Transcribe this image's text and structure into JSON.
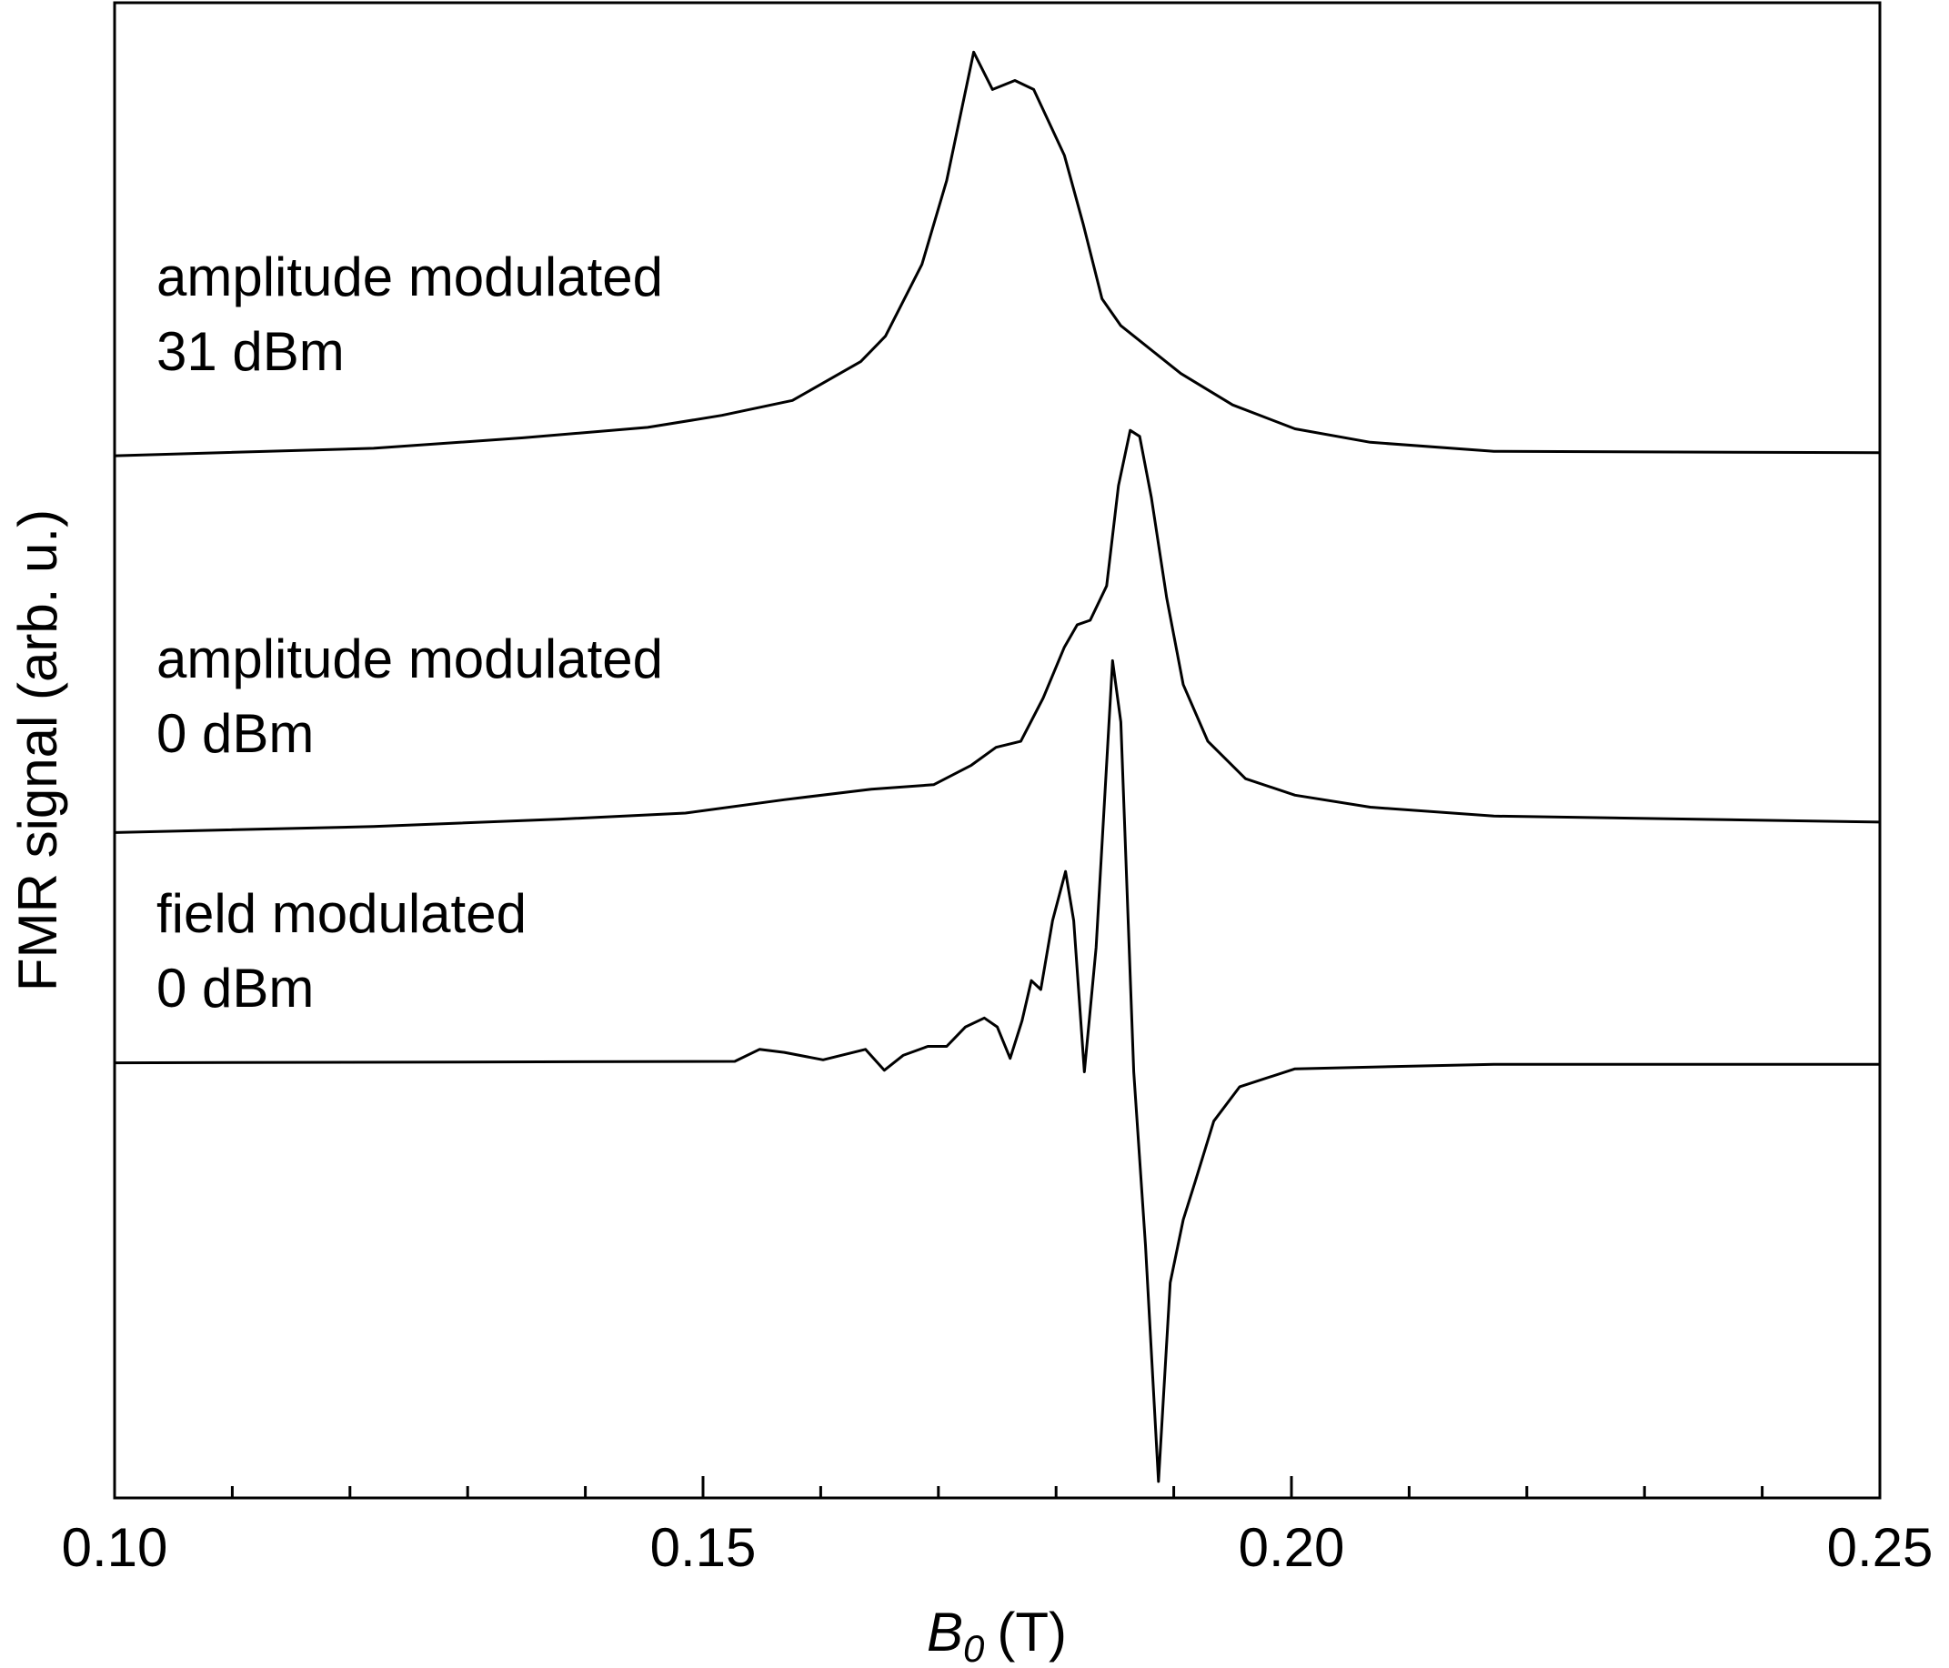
{
  "chart_data": {
    "type": "line",
    "ylabel": "FMR signal (arb. u.)",
    "xlabel": {
      "symbol": "B",
      "subscript": "0",
      "unit": "(T)"
    },
    "xlim": [
      0.1,
      0.25
    ],
    "xticks": [
      {
        "value": 0.1,
        "label": "0.10"
      },
      {
        "value": 0.15,
        "label": "0.15"
      },
      {
        "value": 0.2,
        "label": "0.20"
      },
      {
        "value": 0.25,
        "label": "0.25"
      }
    ],
    "xminorticks": [
      0.11,
      0.12,
      0.13,
      0.14,
      0.16,
      0.17,
      0.18,
      0.19,
      0.21,
      0.22,
      0.23,
      0.24
    ],
    "ylim": [
      0,
      100
    ],
    "annotations": [
      {
        "lines": [
          "amplitude modulated",
          "31 dBm"
        ]
      },
      {
        "lines": [
          "amplitude modulated",
          "0 dBm"
        ]
      },
      {
        "lines": [
          "field modulated",
          "0 dBm"
        ]
      }
    ],
    "series": [
      {
        "color": "#000000",
        "x": [
          0.1,
          0.122,
          0.1347,
          0.1453,
          0.1516,
          0.1576,
          0.1634,
          0.1655,
          0.1686,
          0.1707,
          0.173,
          0.1746,
          0.1765,
          0.1781,
          0.1807,
          0.1823,
          0.1839,
          0.1855,
          0.1906,
          0.195,
          0.2003,
          0.2067,
          0.2172,
          0.25
        ],
        "values": [
          69.7,
          70.2,
          70.9,
          71.6,
          72.4,
          73.4,
          76.0,
          77.7,
          82.5,
          88.1,
          96.7,
          94.2,
          94.8,
          94.2,
          89.8,
          85.2,
          80.2,
          78.4,
          75.2,
          73.1,
          71.5,
          70.6,
          70.0,
          69.9
        ]
      },
      {
        "color": "#000000",
        "x": [
          0.1,
          0.122,
          0.1379,
          0.1485,
          0.1569,
          0.1643,
          0.1696,
          0.1728,
          0.1749,
          0.177,
          0.1789,
          0.1807,
          0.1818,
          0.1829,
          0.1843,
          0.1853,
          0.1863,
          0.1871,
          0.1881,
          0.1894,
          0.1908,
          0.1929,
          0.1961,
          0.2003,
          0.2067,
          0.2172,
          0.25
        ],
        "values": [
          44.5,
          44.9,
          45.4,
          45.8,
          46.7,
          47.4,
          47.7,
          49.0,
          50.2,
          50.6,
          53.5,
          56.9,
          58.4,
          58.7,
          61.0,
          67.7,
          71.4,
          71.0,
          66.9,
          60.2,
          54.4,
          50.6,
          48.1,
          47.0,
          46.2,
          45.6,
          45.2
        ]
      },
      {
        "color": "#000000",
        "x": [
          0.1,
          0.1527,
          0.1548,
          0.1569,
          0.1602,
          0.1638,
          0.1654,
          0.167,
          0.1691,
          0.1707,
          0.1723,
          0.1739,
          0.175,
          0.1761,
          0.1771,
          0.1779,
          0.1787,
          0.1797,
          0.1808,
          0.1815,
          0.1824,
          0.1834,
          0.1848,
          0.1855,
          0.1866,
          0.1876,
          0.1887,
          0.1897,
          0.1908,
          0.1918,
          0.1934,
          0.1956,
          0.2003,
          0.2172,
          0.25
        ],
        "values": [
          29.1,
          29.2,
          30.0,
          29.8,
          29.3,
          30.0,
          28.6,
          29.6,
          30.2,
          30.2,
          31.5,
          32.1,
          31.5,
          29.4,
          31.9,
          34.6,
          34.0,
          38.6,
          41.9,
          38.6,
          28.5,
          36.8,
          56.0,
          51.9,
          28.5,
          16.9,
          1.1,
          14.4,
          18.6,
          21.1,
          25.2,
          27.5,
          28.7,
          29.0,
          29.0
        ]
      }
    ]
  }
}
